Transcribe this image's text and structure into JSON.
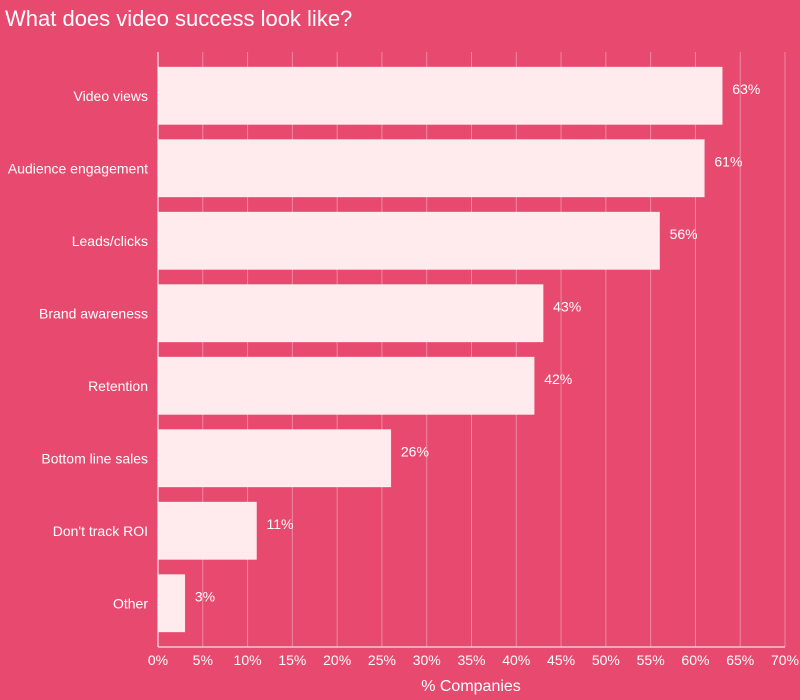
{
  "chart_data": {
    "type": "bar",
    "orientation": "horizontal",
    "title": "What does video success look like?",
    "xlabel": "% Companies",
    "ylabel": "",
    "categories": [
      "Video views",
      "Audience engagement",
      "Leads/clicks",
      "Brand awareness",
      "Retention",
      "Bottom line sales",
      "Don't track ROI",
      "Other"
    ],
    "values": [
      63,
      61,
      56,
      43,
      42,
      26,
      11,
      3
    ],
    "data_labels": [
      "63%",
      "61%",
      "56%",
      "43%",
      "42%",
      "26%",
      "11%",
      "3%"
    ],
    "xlim": [
      0,
      70
    ],
    "xticks": [
      0,
      5,
      10,
      15,
      20,
      25,
      30,
      35,
      40,
      45,
      50,
      55,
      60,
      65,
      70
    ],
    "xtick_labels": [
      "0%",
      "5%",
      "10%",
      "15%",
      "20%",
      "25%",
      "30%",
      "35%",
      "40%",
      "45%",
      "50%",
      "55%",
      "60%",
      "65%",
      "70%"
    ],
    "grid": true,
    "colors": {
      "background": "#e8496f",
      "bar": "#ffebee",
      "text": "#ffffff"
    }
  }
}
